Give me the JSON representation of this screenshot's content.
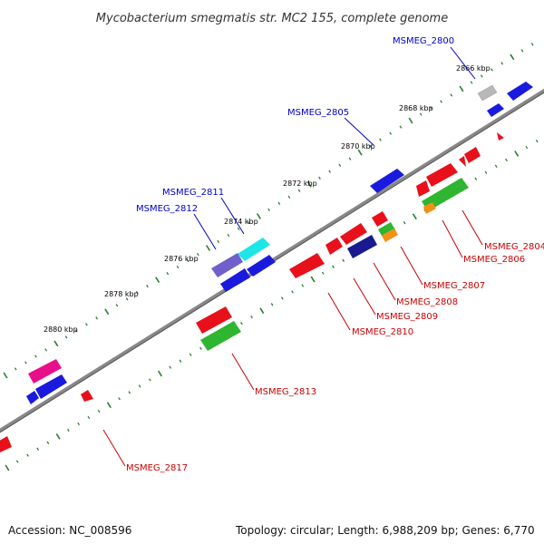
{
  "title": "Mycobacterium smegmatis str. MC2 155, complete genome",
  "footer": {
    "accession": "Accession: NC_008596",
    "stats": "Topology: circular; Length: 6,988,209 bp; Genes: 6,770"
  },
  "colors": {
    "backbone": "#888888",
    "tick_major": "#2e7d32",
    "tick_minor": "#2e7d32",
    "label_forward": "#0000cc",
    "label_reverse": "#cc0000",
    "leader_forward": "#0000cc",
    "leader_reverse": "#cc0000"
  },
  "scale_ticks": [
    {
      "label": "2866 kbp"
    },
    {
      "label": "2868 kbp"
    },
    {
      "label": "2870 kbp"
    },
    {
      "label": "2872 kbp"
    },
    {
      "label": "2874 kbp"
    },
    {
      "label": "2876 kbp"
    },
    {
      "label": "2878 kbp"
    },
    {
      "label": "2880 kbp"
    }
  ],
  "gene_labels": [
    {
      "name": "MSMEG_2800",
      "strand": "forward"
    },
    {
      "name": "MSMEG_2805",
      "strand": "forward"
    },
    {
      "name": "MSMEG_2811",
      "strand": "forward"
    },
    {
      "name": "MSMEG_2812",
      "strand": "forward"
    },
    {
      "name": "MSMEG_2804",
      "strand": "reverse"
    },
    {
      "name": "MSMEG_2806",
      "strand": "reverse"
    },
    {
      "name": "MSMEG_2807",
      "strand": "reverse"
    },
    {
      "name": "MSMEG_2808",
      "strand": "reverse"
    },
    {
      "name": "MSMEG_2809",
      "strand": "reverse"
    },
    {
      "name": "MSMEG_2810",
      "strand": "reverse"
    },
    {
      "name": "MSMEG_2813",
      "strand": "reverse"
    },
    {
      "name": "MSMEG_2817",
      "strand": "reverse"
    }
  ],
  "feature_colors": {
    "blue": "#1a1adf",
    "red": "#e8101a",
    "green": "#2fb52f",
    "cyan": "#1ee6e6",
    "purple": "#7060cc",
    "navy": "#1a1a90",
    "magenta": "#e8108a",
    "gray": "#b8b8b8",
    "orange": "#f39012"
  }
}
